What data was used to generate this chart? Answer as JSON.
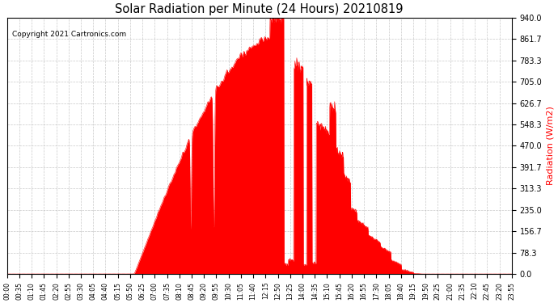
{
  "title": "Solar Radiation per Minute (24 Hours) 20210819",
  "copyright_text": "Copyright 2021 Cartronics.com",
  "ylabel": "Radiation (W/m2)",
  "ylabel_color": "#ff0000",
  "background_color": "#ffffff",
  "fill_color": "#ff0000",
  "line_color": "#ff0000",
  "grid_color": "#bbbbbb",
  "dashed_line_color": "#ff0000",
  "y_ticks": [
    0.0,
    78.3,
    156.7,
    235.0,
    313.3,
    391.7,
    470.0,
    548.3,
    626.7,
    705.0,
    783.3,
    861.7,
    940.0
  ],
  "x_tick_labels": [
    "00:00",
    "00:35",
    "01:10",
    "01:45",
    "02:20",
    "02:55",
    "03:30",
    "04:05",
    "04:40",
    "05:15",
    "05:50",
    "06:25",
    "07:00",
    "07:35",
    "08:10",
    "08:45",
    "09:20",
    "09:55",
    "10:30",
    "11:05",
    "11:40",
    "12:15",
    "12:50",
    "13:25",
    "14:00",
    "14:35",
    "15:10",
    "15:45",
    "16:20",
    "16:55",
    "17:30",
    "18:05",
    "18:40",
    "19:15",
    "19:50",
    "20:25",
    "21:00",
    "21:35",
    "22:10",
    "22:45",
    "23:20",
    "23:55"
  ],
  "ylim": [
    0.0,
    940.0
  ],
  "total_minutes": 1440,
  "sunrise_min": 363,
  "sunset_min": 1182,
  "peak_value": 940.0,
  "peak_minute": 770
}
